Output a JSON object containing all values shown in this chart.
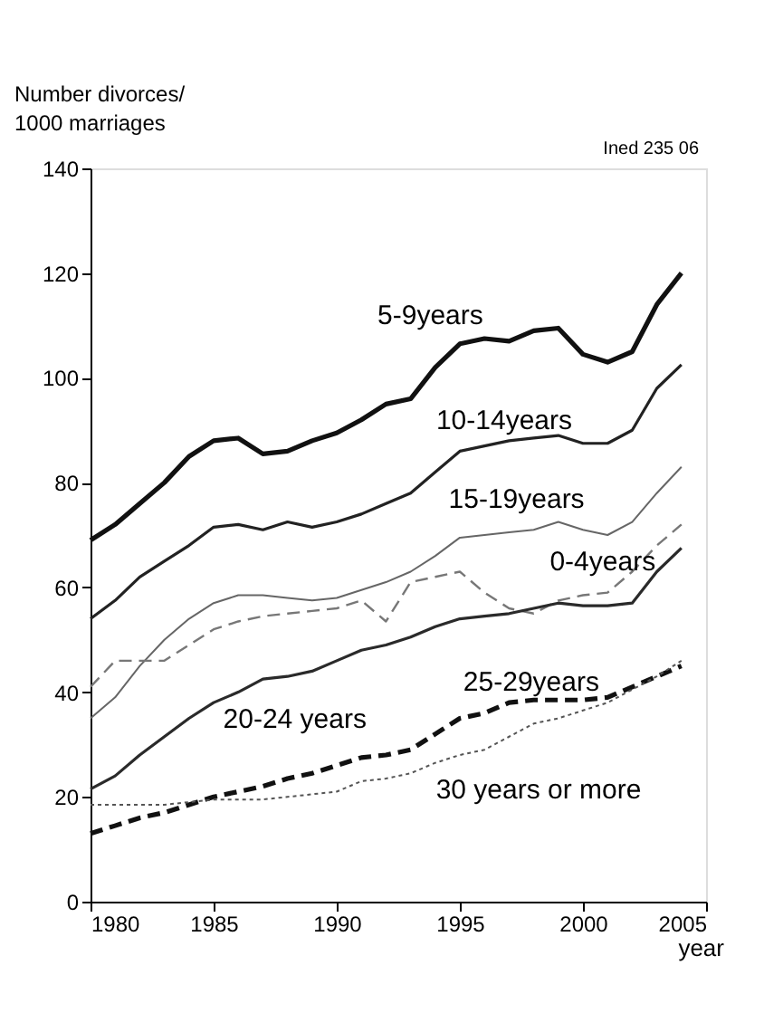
{
  "chart_data": {
    "type": "line",
    "ylabel": "Number divorces/\n1000 marriages",
    "xlabel": "year",
    "annotations": [
      "Ined 235 06"
    ],
    "x": [
      1980,
      1981,
      1982,
      1983,
      1984,
      1985,
      1986,
      1987,
      1988,
      1989,
      1990,
      1991,
      1992,
      1993,
      1994,
      1995,
      1996,
      1997,
      1998,
      1999,
      2000,
      2001,
      2002,
      2003,
      2004
    ],
    "xlim": [
      1980,
      2005
    ],
    "xticks": [
      1980,
      1985,
      1990,
      1995,
      2000,
      2005
    ],
    "ylim": [
      0,
      140
    ],
    "yticks": [
      0,
      20,
      40,
      60,
      80,
      100,
      120,
      140
    ],
    "grid": false,
    "marker": "none",
    "series": [
      {
        "name": "5-9years",
        "color": "#111111",
        "line_style": "solid",
        "values": [
          69,
          72,
          76,
          80,
          85,
          88,
          88.5,
          85.5,
          86,
          88,
          89.5,
          92,
          95,
          96,
          102,
          106.5,
          107.5,
          107,
          109,
          109.5,
          104.5,
          103,
          105,
          114,
          120
        ]
      },
      {
        "name": "10-14years",
        "color": "#222222",
        "line_style": "solid",
        "values": [
          54,
          57.5,
          62,
          65,
          68,
          71.5,
          72,
          71,
          72.5,
          71.5,
          72.5,
          74,
          76,
          78,
          82,
          86,
          87,
          88,
          88.5,
          89,
          87.5,
          87.5,
          90,
          98,
          102.5
        ]
      },
      {
        "name": "15-19years",
        "color": "#666666",
        "line_style": "solid",
        "values": [
          35,
          39,
          45,
          50,
          54,
          57,
          58.5,
          58.5,
          58,
          57.5,
          58,
          59.5,
          61,
          63,
          66,
          69.5,
          70,
          70.5,
          71,
          72.5,
          71,
          70,
          72.5,
          78,
          83
        ]
      },
      {
        "name": "0-4years",
        "color": "#777777",
        "line_style": "dashed",
        "values": [
          41,
          46,
          46,
          46,
          49,
          52,
          53.5,
          54.5,
          55,
          55.5,
          56,
          57.5,
          53.5,
          61,
          62,
          63,
          59,
          56,
          55,
          57.5,
          58.5,
          59,
          63,
          68,
          72
        ]
      },
      {
        "name": "20-24 years",
        "color": "#2a2a2a",
        "line_style": "solid",
        "values": [
          21.5,
          24,
          28,
          31.5,
          35,
          38,
          40,
          42.5,
          43,
          44,
          46,
          48,
          49,
          50.5,
          52.5,
          54,
          54.5,
          55,
          56,
          57,
          56.5,
          56.5,
          57,
          63,
          67.5
        ]
      },
      {
        "name": "25-29years",
        "color": "#111111",
        "line_style": "dashed",
        "values": [
          13,
          14.5,
          16,
          17,
          18.5,
          20,
          21,
          22,
          23.5,
          24.5,
          26,
          27.5,
          28,
          29,
          32,
          35,
          36,
          38,
          38.5,
          38.5,
          38.5,
          39,
          41,
          43,
          45
        ]
      },
      {
        "name": "30 years or more",
        "color": "#555555",
        "line_style": "dotted",
        "values": [
          18.5,
          18.5,
          18.5,
          18.5,
          19,
          19.5,
          19.5,
          19.5,
          20,
          20.5,
          21,
          23,
          23.5,
          24.5,
          26.5,
          28,
          29,
          31.5,
          34,
          35,
          36.5,
          38,
          40.5,
          43,
          46
        ]
      }
    ]
  }
}
